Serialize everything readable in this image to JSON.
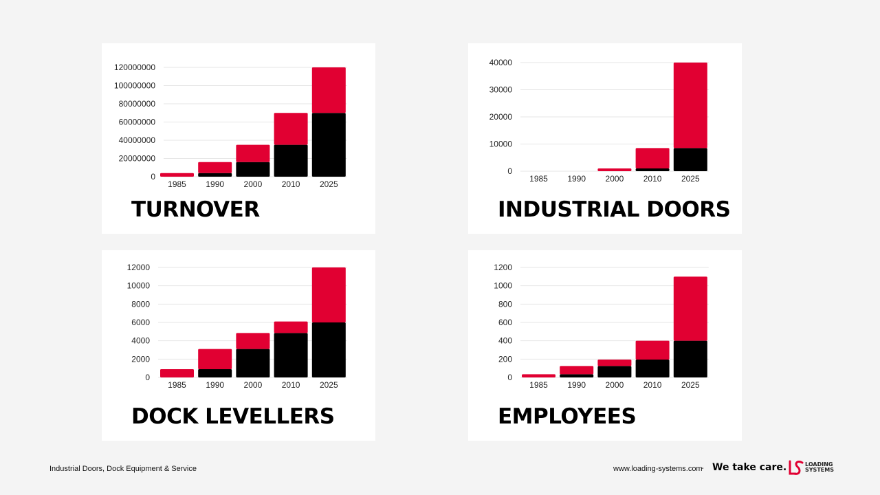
{
  "colors": {
    "black": "#000000",
    "red": "#e10032",
    "grid": "#e6e6e6",
    "background": "#f4f4f4"
  },
  "chart_data": [
    {
      "type": "bar",
      "stacked": true,
      "title": "TURNOVER",
      "categories": [
        "1985",
        "1990",
        "2000",
        "2010",
        "2025"
      ],
      "series": [
        {
          "color": "#000000",
          "values": [
            0,
            4000000,
            16000000,
            35000000,
            70000000
          ]
        },
        {
          "color": "#e10032",
          "values": [
            4000000,
            12000000,
            19000000,
            35000000,
            50000000
          ]
        }
      ],
      "yticks": [
        "0",
        "20000000",
        "40000000",
        "60000000",
        "80000000",
        "100000000",
        "120000000"
      ],
      "ylim": [
        0,
        120000000
      ],
      "grid": true,
      "legend": "none"
    },
    {
      "type": "bar",
      "stacked": true,
      "title": "INDUSTRIAL DOORS",
      "categories": [
        "1985",
        "1990",
        "2000",
        "2010",
        "2025"
      ],
      "series": [
        {
          "color": "#000000",
          "values": [
            0,
            0,
            0,
            1000,
            8500
          ]
        },
        {
          "color": "#e10032",
          "values": [
            0,
            0,
            1000,
            7500,
            31500
          ]
        }
      ],
      "yticks": [
        "0",
        "10000",
        "20000",
        "30000",
        "40000"
      ],
      "ylim": [
        0,
        40000
      ],
      "grid": true,
      "legend": "none"
    },
    {
      "type": "bar",
      "stacked": true,
      "title": "DOCK LEVELLERS",
      "categories": [
        "1985",
        "1990",
        "2000",
        "2010",
        "2025"
      ],
      "series": [
        {
          "color": "#000000",
          "values": [
            0,
            900,
            3100,
            4850,
            6000
          ]
        },
        {
          "color": "#e10032",
          "values": [
            900,
            2200,
            1750,
            1250,
            6000
          ]
        }
      ],
      "yticks": [
        "0",
        "2000",
        "4000",
        "6000",
        "8000",
        "10000",
        "12000"
      ],
      "ylim": [
        0,
        12000
      ],
      "grid": true,
      "legend": "none"
    },
    {
      "type": "bar",
      "stacked": true,
      "title": "EMPLOYEES",
      "categories": [
        "1985",
        "1990",
        "2000",
        "2010",
        "2025"
      ],
      "series": [
        {
          "color": "#000000",
          "values": [
            0,
            35,
            125,
            195,
            400
          ]
        },
        {
          "color": "#e10032",
          "values": [
            35,
            90,
            70,
            205,
            700
          ]
        }
      ],
      "yticks": [
        "0",
        "200",
        "400",
        "600",
        "800",
        "1000",
        "1200"
      ],
      "ylim": [
        0,
        1200
      ],
      "grid": true,
      "legend": "none"
    }
  ],
  "footer": {
    "tagline": "Industrial Doors, Dock Equipment & Service",
    "url": "www.loading-systems.com",
    "separator": "-",
    "slogan": "We take care.",
    "logo_line1": "LOADING",
    "logo_line2": "SYSTEMS"
  }
}
